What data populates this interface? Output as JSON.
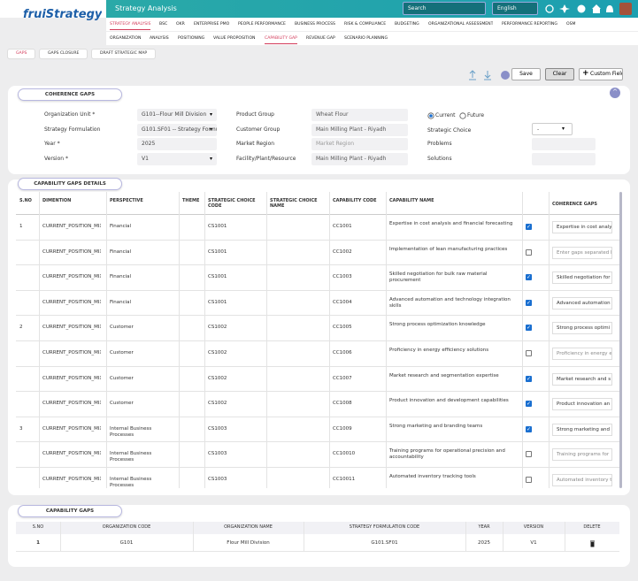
{
  "header": {
    "logo": "fruiStrategy",
    "app_title": "Strategy Analysis",
    "search": "Search",
    "language": "English"
  },
  "nav": [
    {
      "label": "STRATEGY ANALYSIS",
      "active": true
    },
    {
      "label": "BSC"
    },
    {
      "label": "OKR"
    },
    {
      "label": "ENTERPRISE PMO"
    },
    {
      "label": "PEOPLE PERFORMANCE"
    },
    {
      "label": "BUSINESS PROCESS"
    },
    {
      "label": "RISK & COMPLIANCE"
    },
    {
      "label": "BUDGETING"
    },
    {
      "label": "ORGANIZATIONAL ASSESSMENT"
    },
    {
      "label": "PERFORMANCE REPORTING"
    },
    {
      "label": "OSM"
    }
  ],
  "subnav": [
    {
      "label": "ORGANIZATION"
    },
    {
      "label": "ANALYSIS"
    },
    {
      "label": "POSITIONING"
    },
    {
      "label": "VALUE PROPOSITION"
    },
    {
      "label": "CAPABILITY GAP",
      "active": true
    },
    {
      "label": "REVENUE GAP"
    },
    {
      "label": "SCENARIO PLANNING"
    }
  ],
  "tabs": [
    {
      "label": "GAPS",
      "active": true
    },
    {
      "label": "GAPS CLOSURE"
    },
    {
      "label": "DRAFT STRATEGIC MAP"
    }
  ],
  "toolbar": {
    "save": "Save",
    "clear": "Clear",
    "custom_field": "Custom Field"
  },
  "coherence": {
    "title": "COHERENCE GAPS",
    "left": [
      {
        "label": "Organization Unit *",
        "value": "G101--Flour Mill Division",
        "select": true
      },
      {
        "label": "Strategy Formulation",
        "value": "G101.SF01 -- Strategy Formu",
        "select": true
      },
      {
        "label": "Year *",
        "value": "2025"
      },
      {
        "label": "Version *",
        "value": "V1",
        "select": true
      }
    ],
    "middle": [
      {
        "label": "Product Group",
        "value": "Wheat Flour"
      },
      {
        "label": "Customer Group",
        "value": "Main Milling Plant - Riyadh"
      },
      {
        "label": "Market Region",
        "value": "Market Region"
      },
      {
        "label": "Facility/Plant/Resource",
        "value": "Main Milling Plant - Riyadh"
      }
    ],
    "radios": [
      {
        "label": "Current",
        "checked": true
      },
      {
        "label": "Future"
      }
    ],
    "right": [
      {
        "label": "Strategic Choice",
        "value": "-",
        "select": true
      },
      {
        "label": "Problems"
      },
      {
        "label": "Solutions"
      }
    ]
  },
  "details": {
    "title": "CAPABILITY GAPS DETAILS",
    "columns": [
      "S.NO",
      "DIMENTION",
      "PERSPECTIVE",
      "THEME",
      "STRATEGIC CHOICE CODE",
      "STRATEGIC CHOICE NAME",
      "CAPABILITY CODE",
      "CAPABILITY NAME",
      null,
      "COHERENCE GAPS"
    ],
    "rows": [
      {
        "sno": "1",
        "dimension": "CURRENT_POSITION_MIX",
        "perspective": "Financial",
        "sc_code": "CS1001",
        "cap_code": "CC1001",
        "cap_name": "Expertise in cost analysis and financial forecasting",
        "checked": true,
        "gap": "Expertise in cost analy"
      },
      {
        "sno": null,
        "dimension": "CURRENT_POSITION_MIX",
        "perspective": "Financial",
        "sc_code": "CS1001",
        "cap_code": "CC1002",
        "cap_name": "Implementation of lean manufacturing practices",
        "checked": false,
        "gap": "Enter gaps separated l"
      },
      {
        "sno": null,
        "dimension": "CURRENT_POSITION_MIX",
        "perspective": "Financial",
        "sc_code": "CS1001",
        "cap_code": "CC1003",
        "cap_name": "Skilled negotiation for bulk raw material procurement",
        "checked": true,
        "gap": "Skilled negotiation for"
      },
      {
        "sno": null,
        "dimension": "CURRENT_POSITION_MIX",
        "perspective": "Financial",
        "sc_code": "CS1001",
        "cap_code": "CC1004",
        "cap_name": "Advanced automation and technology integration skills",
        "checked": true,
        "gap": "Advanced automation"
      },
      {
        "sno": "2",
        "dimension": "CURRENT_POSITION_MIX",
        "perspective": "Customer",
        "sc_code": "CS1002",
        "cap_code": "CC1005",
        "cap_name": "Strong process optimization knowledge",
        "checked": true,
        "gap": "Strong process optimi"
      },
      {
        "sno": null,
        "dimension": "CURRENT_POSITION_MIX",
        "perspective": "Customer",
        "sc_code": "CS1002",
        "cap_code": "CC1006",
        "cap_name": "Proficiency in energy efficiency solutions",
        "checked": false,
        "gap": "Proficiency in energy e"
      },
      {
        "sno": null,
        "dimension": "CURRENT_POSITION_MIX",
        "perspective": "Customer",
        "sc_code": "CS1002",
        "cap_code": "CC1007",
        "cap_name": "Market research and segmentation expertise",
        "checked": true,
        "gap": "Market research and s"
      },
      {
        "sno": null,
        "dimension": "CURRENT_POSITION_MIX",
        "perspective": "Customer",
        "sc_code": "CS1002",
        "cap_code": "CC1008",
        "cap_name": "Product innovation and development capabilities",
        "checked": true,
        "gap": "Product innovation an"
      },
      {
        "sno": "3",
        "dimension": "CURRENT_POSITION_MIX",
        "perspective": "Internal Business Processes",
        "sc_code": "CS1003",
        "cap_code": "CC1009",
        "cap_name": "Strong marketing and branding teams",
        "checked": true,
        "gap": "Strong marketing and"
      },
      {
        "sno": null,
        "dimension": "CURRENT_POSITION_MIX",
        "perspective": "Internal Business Processes",
        "sc_code": "CS1003",
        "cap_code": "CC10010",
        "cap_name": "Training programs for operational precision and accountability",
        "checked": false,
        "gap": "Training programs for"
      },
      {
        "sno": null,
        "dimension": "CURRENT_POSITION_MIX",
        "perspective": "Internal Business Processes",
        "sc_code": "CS1003",
        "cap_code": "CC10011",
        "cap_name": "Automated inventory tracking tools",
        "checked": false,
        "gap": "Automated inventory t"
      }
    ]
  },
  "capability_gaps": {
    "title": "CAPABILITY GAPS",
    "columns": [
      "S.NO",
      "ORGANIZATION CODE",
      "ORGANIZATION NAME",
      "STRATEGY FORMULATION CODE",
      "YEAR",
      "VERSION",
      "DELETE"
    ],
    "rows": [
      [
        "1",
        "G101",
        "Flour Mill Division",
        "G101.SF01",
        "2025",
        "V1"
      ]
    ]
  }
}
